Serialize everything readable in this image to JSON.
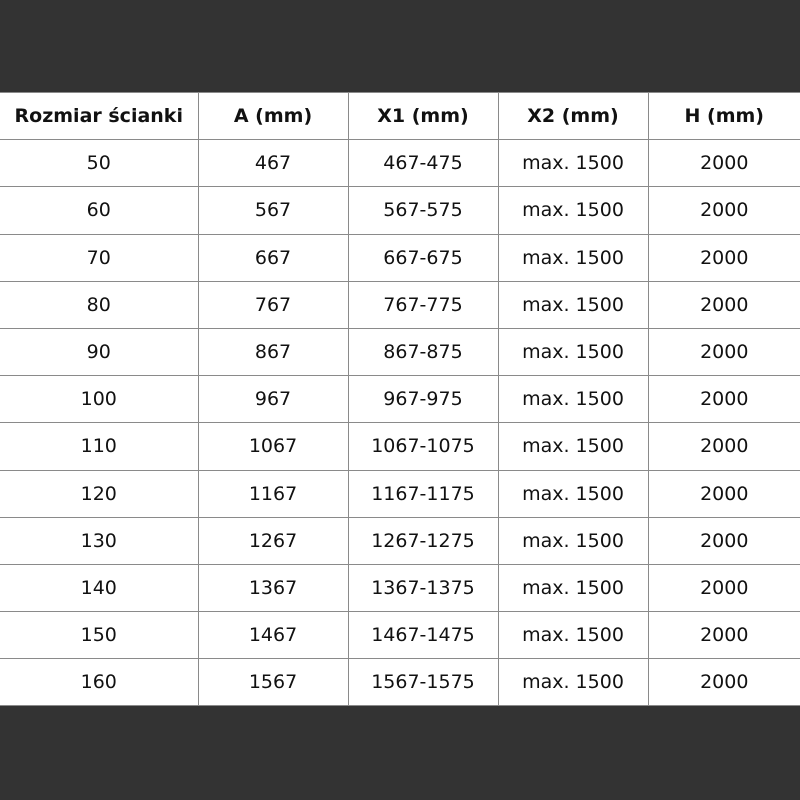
{
  "table": {
    "headers": [
      "Rozmiar ścianki",
      "A (mm)",
      "X1 (mm)",
      "X2 (mm)",
      "H (mm)"
    ],
    "rows": [
      [
        "50",
        "467",
        "467-475",
        "max. 1500",
        "2000"
      ],
      [
        "60",
        "567",
        "567-575",
        "max. 1500",
        "2000"
      ],
      [
        "70",
        "667",
        "667-675",
        "max. 1500",
        "2000"
      ],
      [
        "80",
        "767",
        "767-775",
        "max. 1500",
        "2000"
      ],
      [
        "90",
        "867",
        "867-875",
        "max. 1500",
        "2000"
      ],
      [
        "100",
        "967",
        "967-975",
        "max. 1500",
        "2000"
      ],
      [
        "110",
        "1067",
        "1067-1075",
        "max. 1500",
        "2000"
      ],
      [
        "120",
        "1167",
        "1167-1175",
        "max. 1500",
        "2000"
      ],
      [
        "130",
        "1267",
        "1267-1275",
        "max. 1500",
        "2000"
      ],
      [
        "140",
        "1367",
        "1367-1375",
        "max. 1500",
        "2000"
      ],
      [
        "150",
        "1467",
        "1467-1475",
        "max. 1500",
        "2000"
      ],
      [
        "160",
        "1567",
        "1567-1575",
        "max. 1500",
        "2000"
      ]
    ]
  }
}
